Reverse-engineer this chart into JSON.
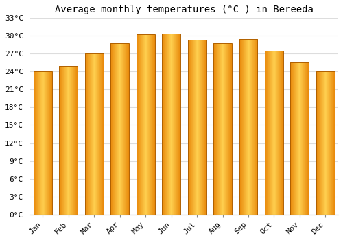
{
  "title": "Average monthly temperatures (°C ) in Bereeda",
  "months": [
    "Jan",
    "Feb",
    "Mar",
    "Apr",
    "May",
    "Jun",
    "Jul",
    "Aug",
    "Sep",
    "Oct",
    "Nov",
    "Dec"
  ],
  "temperatures": [
    24.0,
    25.0,
    27.0,
    28.8,
    30.3,
    30.4,
    29.3,
    28.8,
    29.5,
    27.5,
    25.5,
    24.1
  ],
  "bar_color_dark": "#E8880A",
  "bar_color_light": "#FFD050",
  "bar_edge_color": "#B06000",
  "ylim": [
    0,
    33
  ],
  "yticks": [
    0,
    3,
    6,
    9,
    12,
    15,
    18,
    21,
    24,
    27,
    30,
    33
  ],
  "ytick_labels": [
    "0°C",
    "3°C",
    "6°C",
    "9°C",
    "12°C",
    "15°C",
    "18°C",
    "21°C",
    "24°C",
    "27°C",
    "30°C",
    "33°C"
  ],
  "background_color": "#ffffff",
  "plot_bg_color": "#f8f8f8",
  "grid_color": "#dddddd",
  "title_fontsize": 10,
  "tick_fontsize": 8,
  "font_family": "monospace"
}
